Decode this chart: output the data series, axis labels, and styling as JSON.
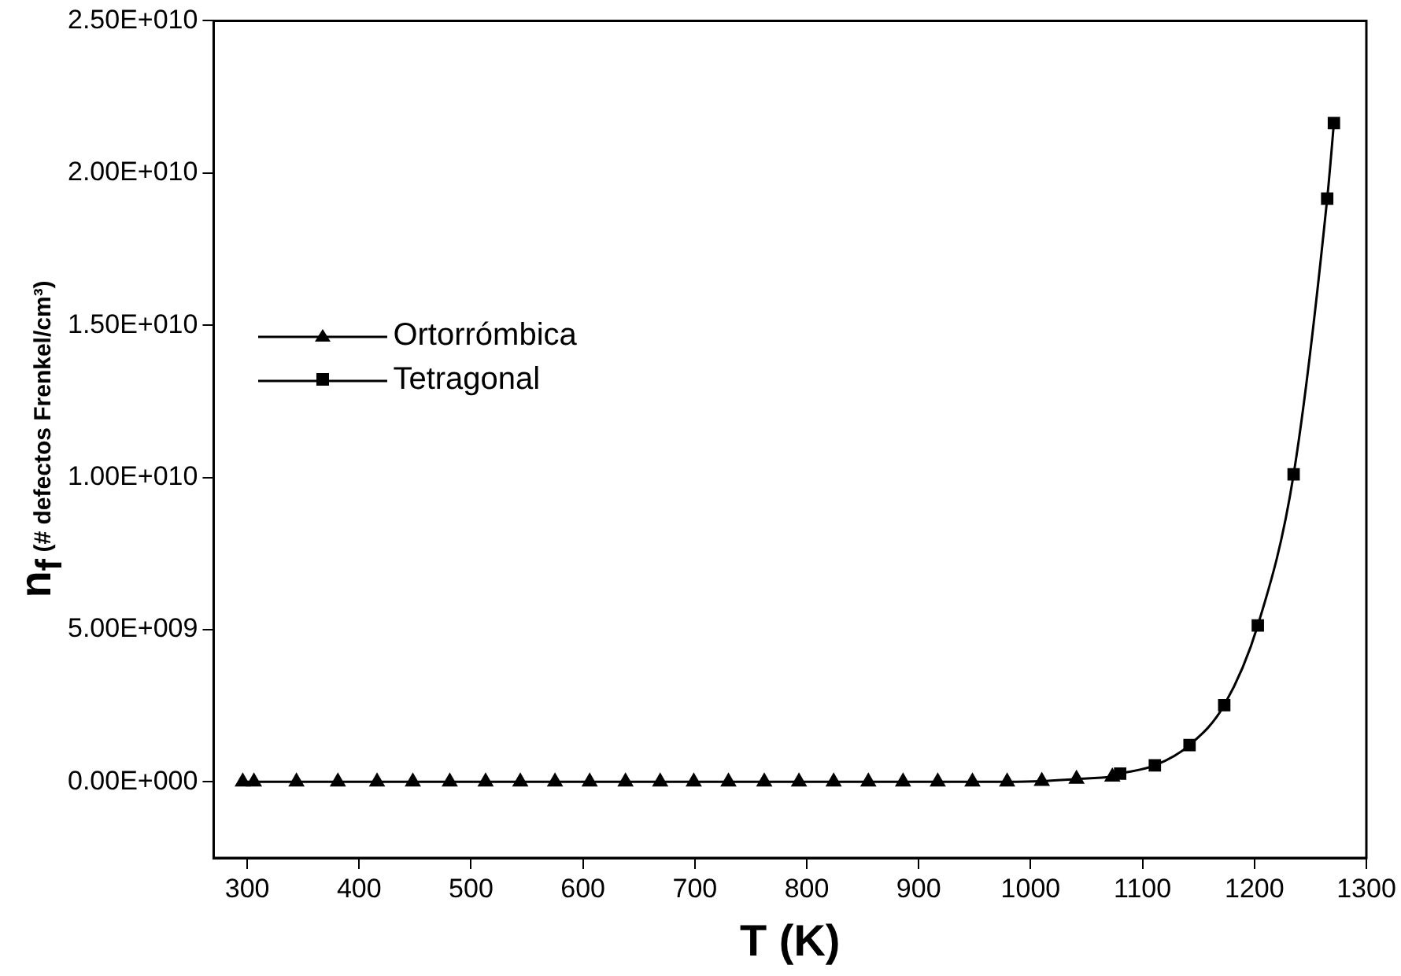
{
  "chart_data": {
    "type": "line",
    "xlabel": "T (K)",
    "ylabel": "n$_{f}$ (# defectos Frenkel/cm³)",
    "xlim": [
      270,
      1300
    ],
    "ylim": [
      -2500000000,
      25000000000
    ],
    "xticks": [
      300,
      400,
      500,
      600,
      700,
      800,
      900,
      1000,
      1100,
      1200,
      1300
    ],
    "yticks": [
      {
        "value": 0,
        "label": "0.00E+000"
      },
      {
        "value": 5000000000,
        "label": "5.00E+009"
      },
      {
        "value": 10000000000,
        "label": "1.00E+010"
      },
      {
        "value": 15000000000,
        "label": "1.50E+010"
      },
      {
        "value": 20000000000,
        "label": "2.00E+010"
      },
      {
        "value": 25000000000,
        "label": "2.50E+010"
      }
    ],
    "grid": false,
    "legend": "left",
    "line_style": "solid",
    "series": [
      {
        "name": "Ortorrómbica",
        "color": "#000000",
        "marker": "triangle",
        "x": [
          296,
          306,
          344,
          381,
          416,
          448,
          481,
          513,
          544,
          575,
          606,
          638,
          669,
          699,
          730,
          762,
          793,
          824,
          855,
          886,
          917,
          948,
          979,
          1010,
          1041,
          1073
        ],
        "values": [
          0,
          0,
          0,
          0,
          0,
          0,
          0,
          0,
          0,
          0,
          0,
          0,
          0,
          0,
          0,
          0,
          0,
          0,
          0,
          0,
          0,
          0,
          0,
          20000000,
          90000000,
          160000000
        ]
      },
      {
        "name": "Tetragonal",
        "color": "#000000",
        "marker": "square",
        "x": [
          1080,
          1111,
          1142,
          1173,
          1203,
          1235,
          1265,
          1271
        ],
        "values": [
          270000000,
          540000000,
          1210000000,
          2520000000,
          5140000000,
          10100000000,
          19160000000,
          21640000000
        ]
      }
    ]
  }
}
